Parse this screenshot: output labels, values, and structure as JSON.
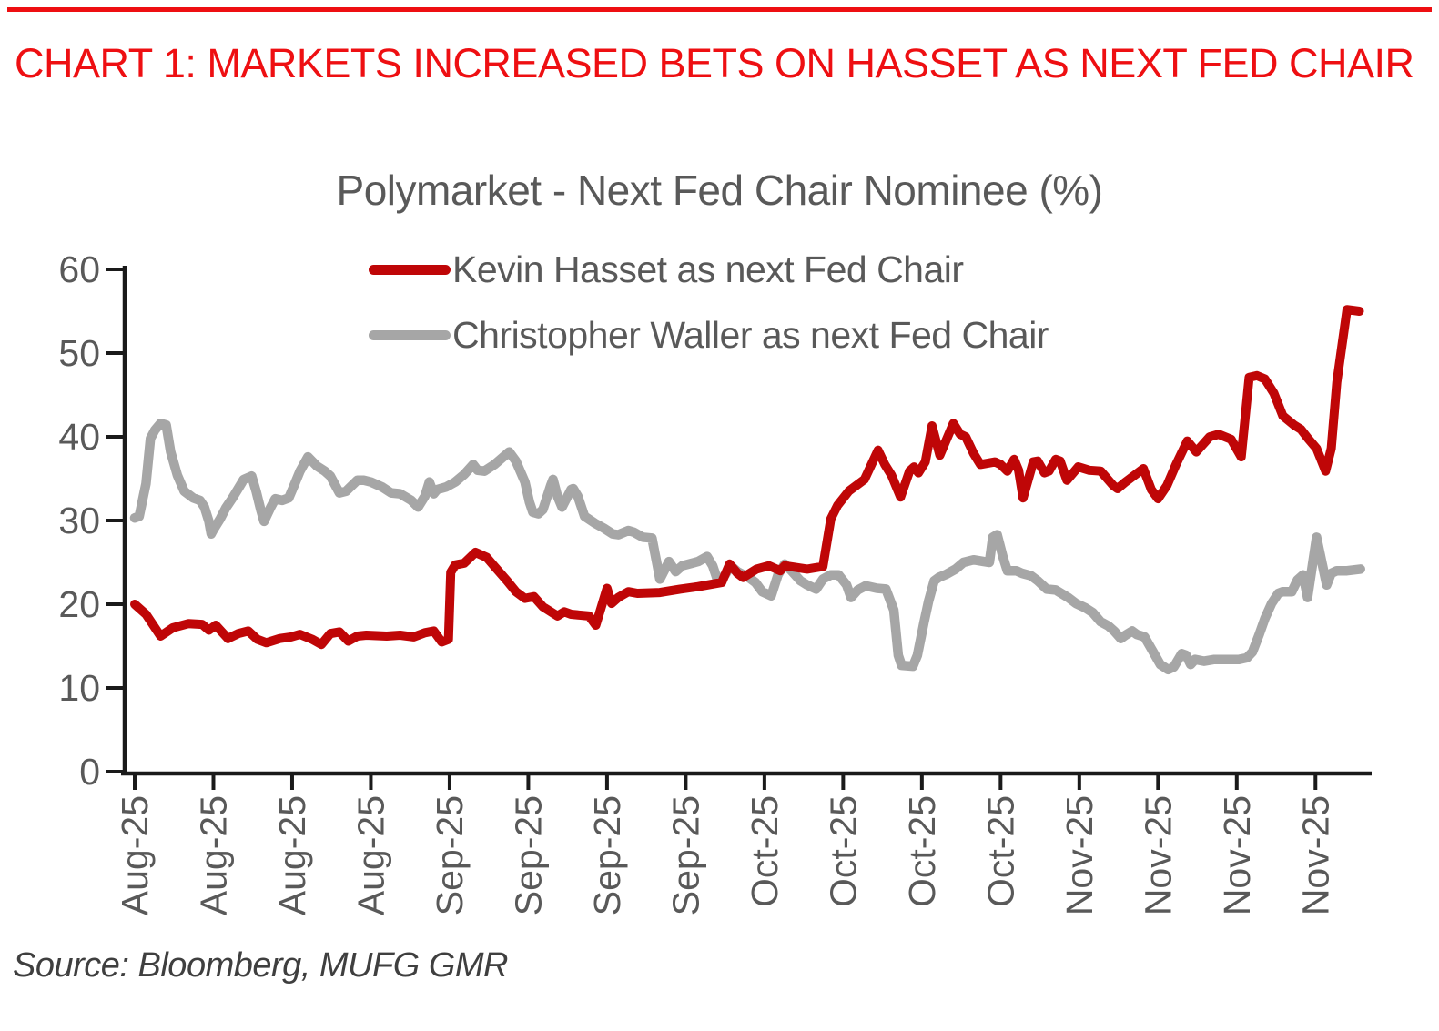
{
  "header": {
    "title": "CHART 1: MARKETS INCREASED BETS ON HASSET AS NEXT FED CHAIR",
    "accent_color": "#ee0f12"
  },
  "source_note": "Source: Bloomberg, MUFG GMR",
  "colors": {
    "header_red": "#ee0f12",
    "series_red": "#bf0607",
    "series_gray": "#a6a6a6",
    "text_gray": "#595959",
    "source_text": "#3f3f3f",
    "axis_black": "#1a1a1a",
    "background": "#ffffff"
  },
  "chart_data": {
    "type": "line",
    "title": "Polymarket - Next Fed Chair Nominee (%)",
    "xlabel": "",
    "ylabel": "",
    "ylim": [
      0,
      60
    ],
    "y_ticks": [
      0,
      10,
      20,
      30,
      40,
      50,
      60
    ],
    "x_unit": "days since Aug 1 2025 (weekly ticks)",
    "x_tick_interval_days": 7,
    "x_tick_labels": [
      "Aug-25",
      "Aug-25",
      "Aug-25",
      "Aug-25",
      "Sep-25",
      "Sep-25",
      "Sep-25",
      "Sep-25",
      "Oct-25",
      "Oct-25",
      "Oct-25",
      "Oct-25",
      "Nov-25",
      "Nov-25",
      "Nov-25",
      "Nov-25"
    ],
    "xlim_days": [
      0,
      110
    ],
    "grid": false,
    "legend_position": "top-center",
    "series": [
      {
        "name": "Kevin Hasset as next Fed Chair",
        "color": "#bf0607",
        "points": [
          [
            0,
            20.0
          ],
          [
            1,
            18.8
          ],
          [
            2.3,
            16.2
          ],
          [
            3.4,
            17.2
          ],
          [
            4.8,
            17.7
          ],
          [
            6,
            17.6
          ],
          [
            6.6,
            16.9
          ],
          [
            7.2,
            17.5
          ],
          [
            8.3,
            15.9
          ],
          [
            9.2,
            16.5
          ],
          [
            10.1,
            16.8
          ],
          [
            10.9,
            15.8
          ],
          [
            11.7,
            15.4
          ],
          [
            12.9,
            15.9
          ],
          [
            13.9,
            16.1
          ],
          [
            14.7,
            16.4
          ],
          [
            15.8,
            15.8
          ],
          [
            16.6,
            15.2
          ],
          [
            17.4,
            16.5
          ],
          [
            18.2,
            16.7
          ],
          [
            19,
            15.6
          ],
          [
            19.8,
            16.2
          ],
          [
            20.6,
            16.3
          ],
          [
            22.4,
            16.2
          ],
          [
            23.6,
            16.3
          ],
          [
            24.8,
            16.1
          ],
          [
            25.8,
            16.6
          ],
          [
            26.6,
            16.8
          ],
          [
            27.3,
            15.5
          ],
          [
            27.9,
            15.8
          ],
          [
            28.1,
            23.8
          ],
          [
            28.5,
            24.7
          ],
          [
            29.3,
            24.9
          ],
          [
            30.3,
            26.2
          ],
          [
            31.3,
            25.6
          ],
          [
            32,
            24.5
          ],
          [
            33.1,
            22.8
          ],
          [
            33.9,
            21.5
          ],
          [
            34.7,
            20.7
          ],
          [
            35.5,
            20.9
          ],
          [
            36.3,
            19.7
          ],
          [
            37.6,
            18.6
          ],
          [
            38.2,
            19.1
          ],
          [
            38.8,
            18.8
          ],
          [
            40.4,
            18.6
          ],
          [
            41,
            17.5
          ],
          [
            42,
            21.9
          ],
          [
            42.4,
            20.1
          ],
          [
            43,
            20.8
          ],
          [
            43.9,
            21.5
          ],
          [
            44.7,
            21.3
          ],
          [
            46.7,
            21.4
          ],
          [
            48.5,
            21.8
          ],
          [
            50.1,
            22.1
          ],
          [
            52.2,
            22.6
          ],
          [
            52.9,
            24.8
          ],
          [
            53.6,
            23.7
          ],
          [
            54.1,
            23.2
          ],
          [
            55.3,
            24.2
          ],
          [
            56.4,
            24.6
          ],
          [
            57.4,
            24.0
          ],
          [
            57.8,
            24.6
          ],
          [
            59.8,
            24.2
          ],
          [
            61.2,
            24.5
          ],
          [
            61.9,
            30.2
          ],
          [
            62.5,
            31.8
          ],
          [
            63.5,
            33.5
          ],
          [
            64.9,
            34.9
          ],
          [
            66.1,
            38.4
          ],
          [
            66.7,
            36.7
          ],
          [
            67.3,
            35.4
          ],
          [
            68.1,
            32.8
          ],
          [
            68.9,
            35.9
          ],
          [
            69.3,
            36.4
          ],
          [
            69.7,
            35.7
          ],
          [
            70.3,
            37.0
          ],
          [
            70.9,
            41.3
          ],
          [
            71.6,
            37.8
          ],
          [
            72.8,
            41.6
          ],
          [
            73.4,
            40.3
          ],
          [
            73.9,
            40.0
          ],
          [
            74.6,
            38.0
          ],
          [
            75.2,
            36.7
          ],
          [
            76.5,
            37.0
          ],
          [
            77,
            36.7
          ],
          [
            77.6,
            35.9
          ],
          [
            78.2,
            37.3
          ],
          [
            78.6,
            36.0
          ],
          [
            79,
            32.7
          ],
          [
            79.9,
            37.0
          ],
          [
            80.3,
            37.1
          ],
          [
            80.9,
            35.7
          ],
          [
            81.3,
            35.9
          ],
          [
            81.9,
            37.3
          ],
          [
            82.3,
            37.1
          ],
          [
            82.9,
            34.8
          ],
          [
            83.9,
            36.4
          ],
          [
            84.9,
            36.0
          ],
          [
            85.9,
            35.9
          ],
          [
            87,
            34.2
          ],
          [
            87.4,
            33.8
          ],
          [
            88.1,
            34.6
          ],
          [
            89.7,
            36.2
          ],
          [
            90.4,
            33.7
          ],
          [
            91,
            32.6
          ],
          [
            91.8,
            34.2
          ],
          [
            92.6,
            36.7
          ],
          [
            93.6,
            39.5
          ],
          [
            94.4,
            38.2
          ],
          [
            95.6,
            40.0
          ],
          [
            96.4,
            40.3
          ],
          [
            97.5,
            39.7
          ],
          [
            98.4,
            37.6
          ],
          [
            99.1,
            47.1
          ],
          [
            99.8,
            47.3
          ],
          [
            100.5,
            46.9
          ],
          [
            101.3,
            45.2
          ],
          [
            102.1,
            42.5
          ],
          [
            103.1,
            41.4
          ],
          [
            103.7,
            40.9
          ],
          [
            104.4,
            39.7
          ],
          [
            105.1,
            38.6
          ],
          [
            105.9,
            35.9
          ],
          [
            106.4,
            38.6
          ],
          [
            106.9,
            46.5
          ],
          [
            107.8,
            55.2
          ],
          [
            108.9,
            55.0
          ]
        ]
      },
      {
        "name": "Christopher Waller as next Fed Chair",
        "color": "#a6a6a6",
        "points": [
          [
            0,
            30.3
          ],
          [
            0.4,
            30.5
          ],
          [
            1,
            34.4
          ],
          [
            1.4,
            39.8
          ],
          [
            1.8,
            40.8
          ],
          [
            2.3,
            41.6
          ],
          [
            2.8,
            41.4
          ],
          [
            3.2,
            38.2
          ],
          [
            3.8,
            35.4
          ],
          [
            4.4,
            33.5
          ],
          [
            5.2,
            32.7
          ],
          [
            5.8,
            32.4
          ],
          [
            6.2,
            31.6
          ],
          [
            6.6,
            29.9
          ],
          [
            6.8,
            28.4
          ],
          [
            7,
            28.9
          ],
          [
            7.6,
            30.2
          ],
          [
            8.1,
            31.5
          ],
          [
            8.7,
            32.7
          ],
          [
            9.2,
            33.8
          ],
          [
            9.7,
            34.9
          ],
          [
            10.4,
            35.3
          ],
          [
            10.8,
            33.5
          ],
          [
            11.2,
            31.3
          ],
          [
            11.5,
            29.9
          ],
          [
            12.1,
            31.6
          ],
          [
            12.5,
            32.6
          ],
          [
            13.1,
            32.4
          ],
          [
            13.7,
            32.7
          ],
          [
            14.3,
            34.6
          ],
          [
            14.7,
            35.9
          ],
          [
            15.4,
            37.6
          ],
          [
            16.2,
            36.5
          ],
          [
            16.9,
            35.9
          ],
          [
            17.4,
            35.3
          ],
          [
            18.2,
            33.3
          ],
          [
            18.8,
            33.5
          ],
          [
            19.8,
            34.8
          ],
          [
            20.4,
            34.8
          ],
          [
            21,
            34.6
          ],
          [
            22,
            34.0
          ],
          [
            22.8,
            33.3
          ],
          [
            23.6,
            33.2
          ],
          [
            24.6,
            32.4
          ],
          [
            25.2,
            31.6
          ],
          [
            25.8,
            32.9
          ],
          [
            26.2,
            34.6
          ],
          [
            26.6,
            33.2
          ],
          [
            26.9,
            33.7
          ],
          [
            27.7,
            34.0
          ],
          [
            28.5,
            34.6
          ],
          [
            29.3,
            35.5
          ],
          [
            30.1,
            36.7
          ],
          [
            30.5,
            36.0
          ],
          [
            31.1,
            35.9
          ],
          [
            32,
            36.7
          ],
          [
            33.3,
            38.2
          ],
          [
            33.9,
            37.1
          ],
          [
            34.7,
            34.6
          ],
          [
            35.1,
            32.2
          ],
          [
            35.4,
            31.0
          ],
          [
            35.9,
            30.8
          ],
          [
            36.3,
            31.3
          ],
          [
            37,
            34.2
          ],
          [
            37.2,
            34.9
          ],
          [
            37.6,
            32.9
          ],
          [
            38,
            31.6
          ],
          [
            38.8,
            33.7
          ],
          [
            39,
            33.8
          ],
          [
            39.4,
            32.9
          ],
          [
            40,
            30.5
          ],
          [
            40.9,
            29.7
          ],
          [
            41.7,
            29.1
          ],
          [
            42.5,
            28.4
          ],
          [
            43,
            28.3
          ],
          [
            43.9,
            28.8
          ],
          [
            44.4,
            28.6
          ],
          [
            45.2,
            28.0
          ],
          [
            46,
            27.9
          ],
          [
            46.7,
            23.0
          ],
          [
            47.5,
            25.1
          ],
          [
            48.1,
            23.9
          ],
          [
            48.7,
            24.6
          ],
          [
            50.1,
            25.1
          ],
          [
            50.9,
            25.7
          ],
          [
            51.4,
            24.6
          ],
          [
            51.9,
            22.6
          ],
          [
            52.5,
            23.5
          ],
          [
            53,
            24.6
          ],
          [
            53.6,
            23.9
          ],
          [
            54.6,
            23.2
          ],
          [
            55.2,
            22.6
          ],
          [
            55.8,
            21.5
          ],
          [
            56.6,
            21.0
          ],
          [
            57.2,
            23.5
          ],
          [
            57.8,
            24.8
          ],
          [
            58.4,
            24.0
          ],
          [
            59.2,
            22.8
          ],
          [
            59.8,
            22.3
          ],
          [
            60.6,
            21.8
          ],
          [
            61.2,
            23.0
          ],
          [
            61.9,
            23.5
          ],
          [
            62.6,
            23.5
          ],
          [
            63.3,
            22.3
          ],
          [
            63.7,
            20.8
          ],
          [
            64.3,
            21.7
          ],
          [
            65,
            22.2
          ],
          [
            66,
            21.9
          ],
          [
            66.8,
            21.8
          ],
          [
            67.5,
            19.3
          ],
          [
            67.9,
            13.9
          ],
          [
            68.2,
            12.7
          ],
          [
            69.2,
            12.6
          ],
          [
            69.6,
            13.9
          ],
          [
            70.2,
            17.9
          ],
          [
            70.6,
            20.4
          ],
          [
            71.1,
            22.8
          ],
          [
            71.5,
            23.2
          ],
          [
            72.2,
            23.6
          ],
          [
            73,
            24.2
          ],
          [
            73.7,
            25.0
          ],
          [
            74.6,
            25.3
          ],
          [
            75.5,
            25.1
          ],
          [
            76,
            25.0
          ],
          [
            76.3,
            28.0
          ],
          [
            76.7,
            28.3
          ],
          [
            77.2,
            25.7
          ],
          [
            77.6,
            24.0
          ],
          [
            78.4,
            24.0
          ],
          [
            78.9,
            23.7
          ],
          [
            79.7,
            23.4
          ],
          [
            80.3,
            22.8
          ],
          [
            81.1,
            21.8
          ],
          [
            81.9,
            21.7
          ],
          [
            83,
            20.8
          ],
          [
            83.7,
            20.1
          ],
          [
            84.5,
            19.6
          ],
          [
            85.2,
            19.0
          ],
          [
            85.9,
            17.9
          ],
          [
            86.6,
            17.4
          ],
          [
            87.1,
            16.8
          ],
          [
            87.7,
            15.9
          ],
          [
            88.1,
            16.3
          ],
          [
            88.7,
            16.8
          ],
          [
            89.1,
            16.4
          ],
          [
            89.8,
            16.1
          ],
          [
            90.4,
            14.7
          ],
          [
            91.2,
            12.8
          ],
          [
            91.9,
            12.2
          ],
          [
            92.4,
            12.5
          ],
          [
            93.1,
            14.1
          ],
          [
            93.5,
            13.9
          ],
          [
            93.9,
            12.8
          ],
          [
            94.3,
            13.4
          ],
          [
            95.1,
            13.2
          ],
          [
            96,
            13.4
          ],
          [
            97.1,
            13.4
          ],
          [
            98.2,
            13.4
          ],
          [
            98.9,
            13.6
          ],
          [
            99.4,
            14.3
          ],
          [
            100,
            16.4
          ],
          [
            100.5,
            18.3
          ],
          [
            101.1,
            20.1
          ],
          [
            101.7,
            21.3
          ],
          [
            102.1,
            21.5
          ],
          [
            102.9,
            21.5
          ],
          [
            103.4,
            22.9
          ],
          [
            103.9,
            23.5
          ],
          [
            104.3,
            20.8
          ],
          [
            105.1,
            28.0
          ],
          [
            105.6,
            24.8
          ],
          [
            106,
            22.3
          ],
          [
            106.4,
            23.7
          ],
          [
            106.9,
            24.0
          ],
          [
            107.8,
            24.0
          ],
          [
            109,
            24.2
          ]
        ]
      }
    ]
  }
}
